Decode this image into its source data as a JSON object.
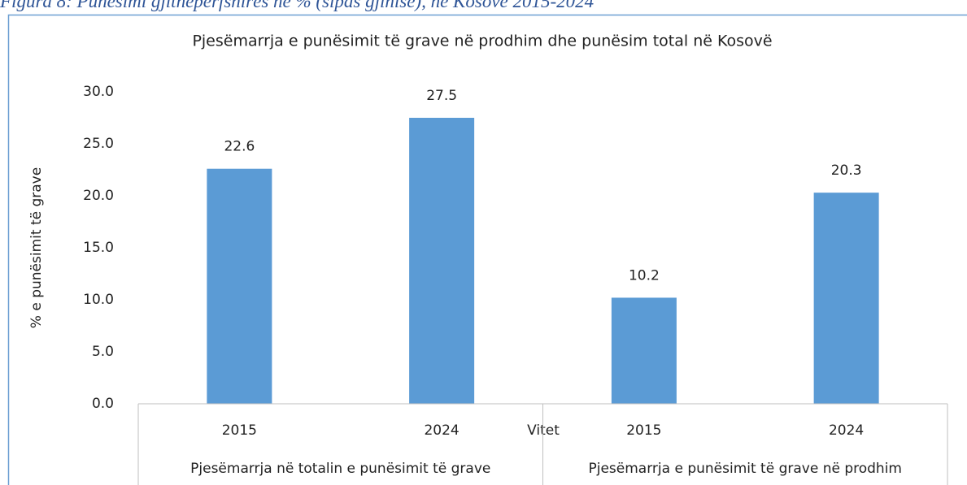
{
  "chart_data": {
    "type": "bar",
    "caption": "Figura 8: Punësimi gjithëpërfshirës në % (sipas gjinisë), në Kosovë 2015-2024",
    "title": "Pjesëmarrja e punësimit të grave në prodhim dhe punësim total në Kosovë",
    "ylabel": "% e punësimit të grave",
    "xlabel": "Vitet",
    "categories": [
      "2015",
      "2024",
      "2015",
      "2024"
    ],
    "group_labels": [
      "Pjesëmarrja në totalin e punësimit të grave",
      "Pjesëmarrja e punësimit të grave në prodhim"
    ],
    "values": [
      22.6,
      27.5,
      10.2,
      20.3
    ],
    "color": "#5b9bd5",
    "ylim": [
      0,
      30
    ],
    "yticks": [
      {
        "value": 0,
        "label": "0.0"
      },
      {
        "value": 5,
        "label": "5.0"
      },
      {
        "value": 10,
        "label": "10.0"
      },
      {
        "value": 15,
        "label": "15.0"
      },
      {
        "value": 20,
        "label": "20.0"
      },
      {
        "value": 25,
        "label": "25.0"
      },
      {
        "value": 30,
        "label": "30.0"
      }
    ],
    "grid": false
  }
}
